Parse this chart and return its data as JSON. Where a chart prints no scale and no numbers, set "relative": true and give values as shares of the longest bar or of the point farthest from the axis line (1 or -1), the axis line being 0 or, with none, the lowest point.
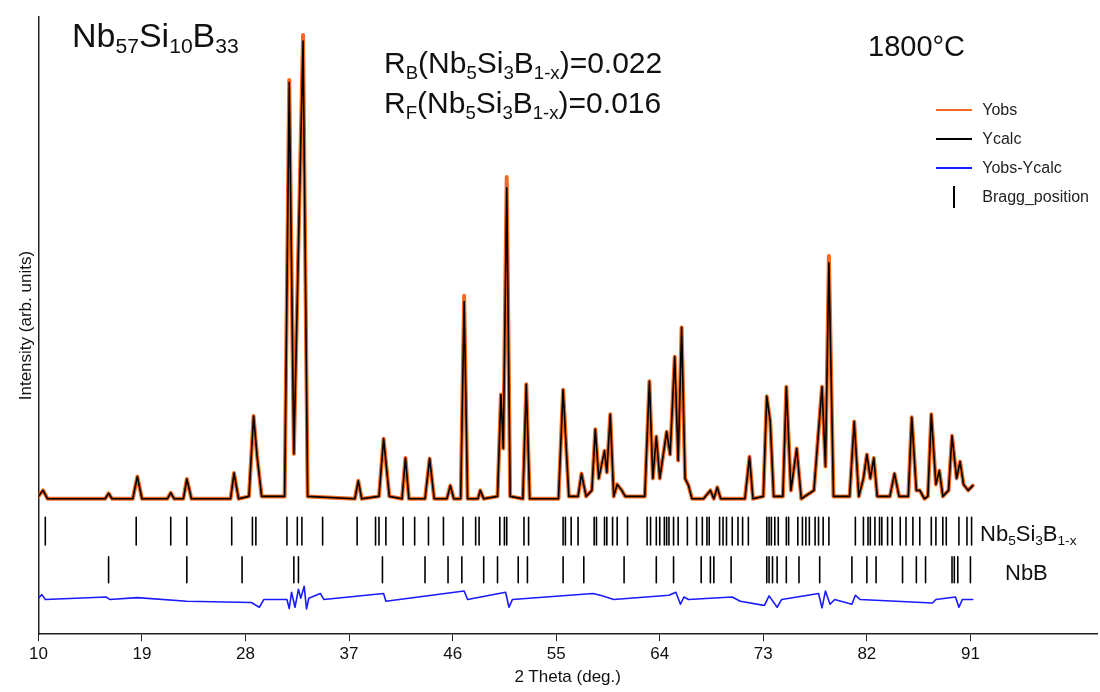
{
  "chart_data": {
    "type": "line",
    "relative": true,
    "xlabel": "2 Theta (deg.)",
    "ylabel": "Intensity (arb. units)",
    "xlim": [
      10,
      102
    ],
    "xticks": [
      10,
      19,
      28,
      37,
      46,
      55,
      64,
      73,
      82,
      91
    ],
    "legend": "top right",
    "marker": "none",
    "annotations": [
      "Nb$_{57}$Si$_{10}$B$_{33}$",
      "R$_{B}$(Nb$_{5}$Si$_{3}$B$_{1-x}$)=0.022",
      "R$_{F}$(Nb$_{5}$Si$_{3}$B$_{1-x}$)=0.016",
      "1800°C",
      "Nb$_{5}$Si$_{3}$B$_{1-x}$",
      "NbB"
    ],
    "x": [
      10.0,
      10.4,
      10.8,
      15.8,
      16.1,
      16.4,
      18.2,
      18.6,
      19.0,
      21.2,
      21.5,
      21.8,
      22.6,
      22.9,
      23.3,
      26.7,
      27.0,
      27.4,
      28.3,
      28.7,
      29.0,
      29.4,
      31.4,
      31.8,
      32.2,
      33.0,
      33.4,
      37.5,
      37.8,
      38.1,
      39.6,
      40.0,
      40.5,
      41.6,
      41.9,
      42.2,
      43.6,
      44.0,
      44.4,
      45.5,
      45.8,
      46.1,
      46.7,
      47.0,
      47.3,
      48.2,
      48.4,
      48.7,
      49.9,
      50.2,
      50.4,
      50.7,
      51.0,
      52.1,
      52.4,
      52.7,
      55.2,
      55.6,
      56.1,
      56.9,
      57.2,
      57.6,
      58.1,
      58.4,
      58.7,
      59.2,
      59.4,
      59.7,
      60.0,
      60.3,
      60.7,
      61.0,
      62.7,
      63.1,
      63.4,
      63.7,
      64.0,
      64.6,
      64.9,
      65.3,
      65.6,
      65.9,
      66.2,
      66.5,
      66.8,
      67.8,
      68.4,
      68.7,
      69.0,
      69.3,
      71.4,
      71.8,
      72.1,
      73.0,
      73.3,
      73.6,
      73.9,
      74.7,
      75.0,
      75.4,
      75.9,
      76.3,
      77.4,
      78.1,
      78.4,
      78.7,
      79.1,
      80.5,
      80.9,
      81.3,
      81.7,
      82.0,
      82.3,
      82.6,
      82.9,
      84.0,
      84.4,
      84.8,
      85.6,
      85.9,
      86.3,
      86.6,
      87.0,
      87.3,
      87.6,
      88.0,
      88.3,
      88.6,
      89.1,
      89.4,
      89.8,
      90.1,
      90.4,
      90.8,
      91.2
    ],
    "series": [
      {
        "name": "Yobs",
        "color": "#f26a21",
        "values": [
          0.23,
          0.24,
          0.226,
          0.226,
          0.235,
          0.226,
          0.226,
          0.263,
          0.226,
          0.226,
          0.236,
          0.226,
          0.226,
          0.259,
          0.226,
          0.226,
          0.269,
          0.226,
          0.23,
          0.364,
          0.298,
          0.23,
          0.23,
          0.925,
          0.301,
          1.0,
          0.23,
          0.226,
          0.256,
          0.226,
          0.23,
          0.326,
          0.23,
          0.226,
          0.294,
          0.226,
          0.226,
          0.293,
          0.226,
          0.226,
          0.248,
          0.226,
          0.226,
          0.565,
          0.226,
          0.226,
          0.24,
          0.226,
          0.23,
          0.4,
          0.31,
          0.763,
          0.23,
          0.226,
          0.417,
          0.226,
          0.226,
          0.408,
          0.23,
          0.23,
          0.268,
          0.23,
          0.24,
          0.342,
          0.26,
          0.306,
          0.27,
          0.367,
          0.23,
          0.25,
          0.24,
          0.23,
          0.23,
          0.422,
          0.26,
          0.33,
          0.26,
          0.338,
          0.3,
          0.463,
          0.29,
          0.512,
          0.26,
          0.248,
          0.226,
          0.226,
          0.24,
          0.226,
          0.245,
          0.226,
          0.226,
          0.296,
          0.226,
          0.23,
          0.397,
          0.355,
          0.23,
          0.23,
          0.413,
          0.24,
          0.31,
          0.226,
          0.24,
          0.413,
          0.28,
          0.631,
          0.23,
          0.23,
          0.355,
          0.23,
          0.26,
          0.3,
          0.26,
          0.294,
          0.23,
          0.23,
          0.268,
          0.23,
          0.23,
          0.362,
          0.24,
          0.24,
          0.226,
          0.23,
          0.367,
          0.25,
          0.273,
          0.23,
          0.24,
          0.331,
          0.26,
          0.288,
          0.25,
          0.24,
          0.248
        ]
      },
      {
        "name": "Ycalc",
        "color": "#000000",
        "values": [
          0.23,
          0.24,
          0.226,
          0.226,
          0.235,
          0.226,
          0.226,
          0.263,
          0.226,
          0.226,
          0.236,
          0.226,
          0.226,
          0.259,
          0.226,
          0.226,
          0.269,
          0.226,
          0.23,
          0.364,
          0.298,
          0.23,
          0.23,
          0.921,
          0.301,
          0.99,
          0.23,
          0.226,
          0.256,
          0.226,
          0.23,
          0.326,
          0.23,
          0.226,
          0.294,
          0.226,
          0.226,
          0.293,
          0.226,
          0.226,
          0.248,
          0.226,
          0.226,
          0.555,
          0.226,
          0.226,
          0.24,
          0.226,
          0.23,
          0.4,
          0.31,
          0.745,
          0.23,
          0.226,
          0.417,
          0.226,
          0.226,
          0.408,
          0.23,
          0.23,
          0.268,
          0.23,
          0.24,
          0.342,
          0.26,
          0.306,
          0.27,
          0.367,
          0.23,
          0.25,
          0.24,
          0.23,
          0.23,
          0.422,
          0.26,
          0.33,
          0.26,
          0.338,
          0.3,
          0.463,
          0.29,
          0.512,
          0.26,
          0.248,
          0.226,
          0.226,
          0.24,
          0.226,
          0.245,
          0.226,
          0.226,
          0.296,
          0.226,
          0.23,
          0.397,
          0.355,
          0.23,
          0.23,
          0.413,
          0.24,
          0.31,
          0.226,
          0.24,
          0.413,
          0.28,
          0.62,
          0.23,
          0.23,
          0.355,
          0.23,
          0.26,
          0.3,
          0.26,
          0.294,
          0.23,
          0.23,
          0.268,
          0.23,
          0.23,
          0.362,
          0.24,
          0.24,
          0.226,
          0.23,
          0.367,
          0.25,
          0.273,
          0.23,
          0.24,
          0.331,
          0.26,
          0.288,
          0.25,
          0.24,
          0.248
        ]
      },
      {
        "name": "Yobs-Ycalc",
        "color": "#1a1aff",
        "x": [
          10.0,
          10.3,
          10.6,
          15.9,
          16.2,
          18.6,
          22.9,
          28.5,
          29.2,
          29.6,
          31.6,
          31.8,
          32.0,
          32.3,
          32.6,
          32.8,
          33.1,
          33.3,
          33.5,
          34.5,
          34.8,
          40.0,
          40.2,
          47.0,
          47.3,
          50.6,
          50.9,
          51.2,
          58.2,
          59.0,
          60.0,
          64.8,
          65.4,
          65.8,
          66.1,
          66.5,
          70.3,
          71.0,
          73.1,
          73.5,
          74.2,
          74.6,
          77.8,
          78.1,
          78.4,
          78.8,
          79.2,
          80.7,
          81.0,
          81.4,
          87.7,
          88.0,
          89.7,
          90.0,
          90.3,
          91.2
        ],
        "values": [
          0.06,
          0.066,
          0.058,
          0.062,
          0.058,
          0.061,
          0.055,
          0.053,
          0.045,
          0.058,
          0.058,
          0.043,
          0.07,
          0.045,
          0.075,
          0.06,
          0.08,
          0.042,
          0.06,
          0.068,
          0.058,
          0.068,
          0.055,
          0.072,
          0.058,
          0.07,
          0.045,
          0.058,
          0.068,
          0.064,
          0.058,
          0.065,
          0.07,
          0.05,
          0.062,
          0.058,
          0.062,
          0.055,
          0.048,
          0.064,
          0.045,
          0.058,
          0.068,
          0.044,
          0.072,
          0.05,
          0.058,
          0.05,
          0.065,
          0.058,
          0.052,
          0.058,
          0.062,
          0.045,
          0.058,
          0.058
        ]
      },
      {
        "name": "Bragg_position",
        "color": "#000000",
        "x": [
          10.6,
          10.6,
          null,
          18.5,
          18.5,
          null,
          21.5,
          21.5,
          null,
          22.9,
          22.9,
          null,
          26.8,
          26.8,
          null,
          28.6,
          28.6,
          null,
          28.9,
          28.9,
          null,
          31.6,
          31.6,
          null,
          32.5,
          32.5,
          null,
          32.9,
          32.9,
          null,
          34.7,
          34.7,
          null,
          37.7,
          37.7,
          null,
          39.3,
          39.3,
          null,
          39.6,
          39.6,
          null,
          40.2,
          40.2,
          null,
          41.7,
          41.7,
          null,
          42.7,
          42.7,
          null,
          43.9,
          43.9,
          null,
          45.2,
          45.2,
          null,
          46.9,
          46.9,
          null,
          48.0,
          48.0,
          null,
          48.3,
          48.3,
          null,
          50.1,
          50.1,
          null,
          50.5,
          50.5,
          null,
          50.7,
          50.7,
          null,
          52.2,
          52.2,
          null,
          52.6,
          52.6,
          null,
          55.6,
          55.6,
          null,
          55.8,
          55.8,
          null,
          56.3,
          56.3,
          null,
          56.9,
          56.9,
          null,
          58.3,
          58.3,
          null,
          58.5,
          58.5,
          null,
          59.2,
          59.2,
          null,
          59.4,
          59.4,
          null,
          59.9,
          59.9,
          null,
          60.3,
          60.3,
          null,
          61.2,
          61.2,
          null,
          62.9,
          62.9,
          null,
          63.2,
          63.2,
          null,
          63.7,
          63.7,
          null,
          64.0,
          64.0,
          null,
          64.4,
          64.4,
          null,
          64.6,
          64.6,
          null,
          64.8,
          64.8,
          null,
          65.2,
          65.2,
          null,
          65.6,
          65.6,
          null,
          66.4,
          66.4,
          null,
          67.2,
          67.2,
          null,
          67.7,
          67.7,
          null,
          68.1,
          68.1,
          null,
          68.3,
          68.3,
          null,
          69.2,
          69.2,
          null,
          69.5,
          69.5,
          null,
          69.8,
          69.8,
          null,
          70.3,
          70.3,
          null,
          70.8,
          70.8,
          null,
          71.2,
          71.2,
          null,
          71.7,
          71.7,
          null,
          73.3,
          73.3,
          null,
          73.5,
          73.5,
          null,
          73.7,
          73.7,
          null,
          74.0,
          74.0,
          null,
          74.3,
          74.3,
          null,
          75.0,
          75.0,
          null,
          75.2,
          75.2,
          null,
          76.0,
          76.0,
          null,
          76.4,
          76.4,
          null,
          76.7,
          76.7,
          null,
          77.0,
          77.0,
          null,
          77.5,
          77.5,
          null,
          77.8,
          77.8,
          null,
          78.2,
          78.2,
          null,
          78.7,
          78.7,
          null,
          81.0,
          81.0,
          null,
          81.7,
          81.7,
          null,
          82.1,
          82.1,
          null,
          82.3,
          82.3,
          null,
          82.7,
          82.7,
          null,
          83.1,
          83.1,
          null,
          83.3,
          83.3,
          null,
          83.8,
          83.8,
          null,
          84.2,
          84.2,
          null,
          84.9,
          84.9,
          null,
          85.4,
          85.4,
          null,
          86.0,
          86.0,
          null,
          86.6,
          86.6,
          null,
          87.6,
          87.6,
          null,
          88.0,
          88.0,
          null,
          88.6,
          88.6,
          null,
          88.9,
          88.9,
          null,
          90.0,
          90.0,
          null,
          90.7,
          90.7,
          null,
          91.1,
          91.1,
          null
        ],
        "values": [
          0.149,
          0.195,
          null,
          0.149,
          0.195,
          null,
          0.149,
          0.195,
          null,
          0.149,
          0.195,
          null,
          0.149,
          0.195,
          null,
          0.149,
          0.195,
          null,
          0.149,
          0.195,
          null,
          0.149,
          0.195,
          null,
          0.149,
          0.195,
          null,
          0.149,
          0.195,
          null,
          0.149,
          0.195,
          null,
          0.149,
          0.195,
          null,
          0.149,
          0.195,
          null,
          0.149,
          0.195,
          null,
          0.149,
          0.195,
          null,
          0.149,
          0.195,
          null,
          0.149,
          0.195,
          null,
          0.149,
          0.195,
          null,
          0.149,
          0.195,
          null,
          0.149,
          0.195,
          null,
          0.149,
          0.195,
          null,
          0.149,
          0.195,
          null,
          0.149,
          0.195,
          null,
          0.149,
          0.195,
          null,
          0.149,
          0.195,
          null,
          0.149,
          0.195,
          null,
          0.149,
          0.195,
          null,
          0.149,
          0.195,
          null,
          0.149,
          0.195,
          null,
          0.149,
          0.195,
          null,
          0.149,
          0.195,
          null,
          0.149,
          0.195,
          null,
          0.149,
          0.195,
          null,
          0.149,
          0.195,
          null,
          0.149,
          0.195,
          null,
          0.149,
          0.195,
          null,
          0.149,
          0.195,
          null,
          0.149,
          0.195,
          null,
          0.149,
          0.195,
          null,
          0.149,
          0.195,
          null,
          0.149,
          0.195,
          null,
          0.149,
          0.195,
          null,
          0.149,
          0.195,
          null,
          0.149,
          0.195,
          null,
          0.149,
          0.195,
          null,
          0.149,
          0.195,
          null,
          0.149,
          0.195,
          null,
          0.149,
          0.195,
          null,
          0.149,
          0.195,
          null,
          0.149,
          0.195,
          null,
          0.149,
          0.195,
          null,
          0.149,
          0.195,
          null,
          0.149,
          0.195,
          null,
          0.149,
          0.195,
          null,
          0.149,
          0.195,
          null,
          0.149,
          0.195,
          null,
          0.149,
          0.195,
          null,
          0.149,
          0.195,
          null,
          0.149,
          0.195,
          null,
          0.149,
          0.195,
          null,
          0.149,
          0.195,
          null,
          0.149,
          0.195,
          null,
          0.149,
          0.195,
          null,
          0.149,
          0.195,
          null,
          0.149,
          0.195,
          null,
          0.149,
          0.195,
          null,
          0.149,
          0.195,
          null,
          0.149,
          0.195,
          null,
          0.149,
          0.195,
          null,
          0.149,
          0.195,
          null,
          0.149,
          0.195,
          null,
          0.149,
          0.195,
          null,
          0.149,
          0.195,
          null,
          0.149,
          0.195,
          null,
          0.149,
          0.195,
          null,
          0.149,
          0.195,
          null,
          0.149,
          0.195,
          null,
          0.149,
          0.195,
          null,
          0.149,
          0.195,
          null,
          0.149,
          0.195,
          null,
          0.149,
          0.195,
          null,
          0.149,
          0.195,
          null,
          0.149,
          0.195,
          null,
          0.149,
          0.195,
          null,
          0.149,
          0.195,
          null,
          0.149,
          0.195,
          null,
          0.149,
          0.195,
          null,
          0.149,
          0.195,
          null,
          0.149,
          0.195,
          null,
          0.149,
          0.195,
          null,
          0.149,
          0.195,
          null,
          0.149,
          0.195,
          null,
          0.149,
          0.195,
          null,
          0.149,
          0.195,
          null
        ]
      },
      {
        "color": "#000000",
        "x": [
          16.1,
          16.1,
          null,
          22.9,
          22.9,
          null,
          27.7,
          27.7,
          null,
          32.2,
          32.2,
          null,
          32.6,
          32.6,
          null,
          39.9,
          39.9,
          null,
          43.6,
          43.6,
          null,
          45.6,
          45.6,
          null,
          46.8,
          46.8,
          null,
          48.7,
          48.7,
          null,
          49.9,
          49.9,
          null,
          51.7,
          51.7,
          null,
          52.5,
          52.5,
          null,
          55.6,
          55.6,
          null,
          57.4,
          57.4,
          null,
          60.9,
          60.9,
          null,
          63.7,
          63.7,
          null,
          65.2,
          65.2,
          null,
          67.6,
          67.6,
          null,
          68.4,
          68.4,
          null,
          68.7,
          68.7,
          null,
          70.2,
          70.2,
          null,
          73.3,
          73.3,
          null,
          73.5,
          73.5,
          null,
          73.8,
          73.8,
          null,
          74.2,
          74.2,
          null,
          75.0,
          75.0,
          null,
          76.1,
          76.1,
          null,
          77.9,
          77.9,
          null,
          80.7,
          80.7,
          null,
          82.0,
          82.0,
          null,
          82.8,
          82.8,
          null,
          85.1,
          85.1,
          null,
          86.3,
          86.3,
          null,
          87.1,
          87.1,
          null,
          89.4,
          89.4,
          null,
          89.6,
          89.6,
          null,
          89.9,
          89.9,
          null,
          91.0,
          91.0,
          null
        ],
        "values": [
          0.086,
          0.129,
          null,
          0.086,
          0.129,
          null,
          0.086,
          0.129,
          null,
          0.086,
          0.129,
          null,
          0.086,
          0.129,
          null,
          0.086,
          0.129,
          null,
          0.086,
          0.129,
          null,
          0.086,
          0.129,
          null,
          0.086,
          0.129,
          null,
          0.086,
          0.129,
          null,
          0.086,
          0.129,
          null,
          0.086,
          0.129,
          null,
          0.086,
          0.129,
          null,
          0.086,
          0.129,
          null,
          0.086,
          0.129,
          null,
          0.086,
          0.129,
          null,
          0.086,
          0.129,
          null,
          0.086,
          0.129,
          null,
          0.086,
          0.129,
          null,
          0.086,
          0.129,
          null,
          0.086,
          0.129,
          null,
          0.086,
          0.129,
          null,
          0.086,
          0.129,
          null,
          0.086,
          0.129,
          null,
          0.086,
          0.129,
          null,
          0.086,
          0.129,
          null,
          0.086,
          0.129,
          null,
          0.086,
          0.129,
          null,
          0.086,
          0.129,
          null,
          0.086,
          0.129,
          null,
          0.086,
          0.129,
          null,
          0.086,
          0.129,
          null,
          0.086,
          0.129,
          null,
          0.086,
          0.129,
          null,
          0.086,
          0.129,
          null,
          0.086,
          0.129,
          null,
          0.086,
          0.129,
          null,
          0.086,
          0.129,
          null,
          0.086,
          0.129,
          null
        ]
      }
    ]
  }
}
